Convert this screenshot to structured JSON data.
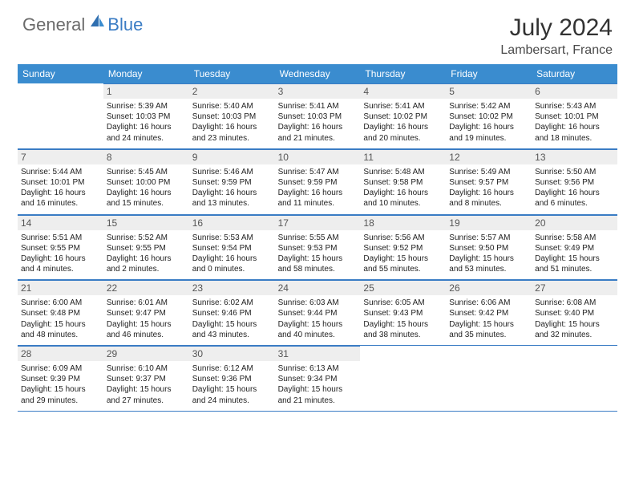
{
  "brand": {
    "part1": "General",
    "part2": "Blue"
  },
  "title": "July 2024",
  "location": "Lambersart, France",
  "colors": {
    "header_bg": "#3a8ccf",
    "border": "#3a7cc4",
    "daynum_bg": "#eeeeee",
    "text": "#222222",
    "logo_gray": "#6b6b6b",
    "logo_blue": "#3a7cc4"
  },
  "day_labels": [
    "Sunday",
    "Monday",
    "Tuesday",
    "Wednesday",
    "Thursday",
    "Friday",
    "Saturday"
  ],
  "weeks": [
    [
      {
        "empty": true
      },
      {
        "n": "1",
        "sunrise": "Sunrise: 5:39 AM",
        "sunset": "Sunset: 10:03 PM",
        "day1": "Daylight: 16 hours",
        "day2": "and 24 minutes."
      },
      {
        "n": "2",
        "sunrise": "Sunrise: 5:40 AM",
        "sunset": "Sunset: 10:03 PM",
        "day1": "Daylight: 16 hours",
        "day2": "and 23 minutes."
      },
      {
        "n": "3",
        "sunrise": "Sunrise: 5:41 AM",
        "sunset": "Sunset: 10:03 PM",
        "day1": "Daylight: 16 hours",
        "day2": "and 21 minutes."
      },
      {
        "n": "4",
        "sunrise": "Sunrise: 5:41 AM",
        "sunset": "Sunset: 10:02 PM",
        "day1": "Daylight: 16 hours",
        "day2": "and 20 minutes."
      },
      {
        "n": "5",
        "sunrise": "Sunrise: 5:42 AM",
        "sunset": "Sunset: 10:02 PM",
        "day1": "Daylight: 16 hours",
        "day2": "and 19 minutes."
      },
      {
        "n": "6",
        "sunrise": "Sunrise: 5:43 AM",
        "sunset": "Sunset: 10:01 PM",
        "day1": "Daylight: 16 hours",
        "day2": "and 18 minutes."
      }
    ],
    [
      {
        "n": "7",
        "sunrise": "Sunrise: 5:44 AM",
        "sunset": "Sunset: 10:01 PM",
        "day1": "Daylight: 16 hours",
        "day2": "and 16 minutes."
      },
      {
        "n": "8",
        "sunrise": "Sunrise: 5:45 AM",
        "sunset": "Sunset: 10:00 PM",
        "day1": "Daylight: 16 hours",
        "day2": "and 15 minutes."
      },
      {
        "n": "9",
        "sunrise": "Sunrise: 5:46 AM",
        "sunset": "Sunset: 9:59 PM",
        "day1": "Daylight: 16 hours",
        "day2": "and 13 minutes."
      },
      {
        "n": "10",
        "sunrise": "Sunrise: 5:47 AM",
        "sunset": "Sunset: 9:59 PM",
        "day1": "Daylight: 16 hours",
        "day2": "and 11 minutes."
      },
      {
        "n": "11",
        "sunrise": "Sunrise: 5:48 AM",
        "sunset": "Sunset: 9:58 PM",
        "day1": "Daylight: 16 hours",
        "day2": "and 10 minutes."
      },
      {
        "n": "12",
        "sunrise": "Sunrise: 5:49 AM",
        "sunset": "Sunset: 9:57 PM",
        "day1": "Daylight: 16 hours",
        "day2": "and 8 minutes."
      },
      {
        "n": "13",
        "sunrise": "Sunrise: 5:50 AM",
        "sunset": "Sunset: 9:56 PM",
        "day1": "Daylight: 16 hours",
        "day2": "and 6 minutes."
      }
    ],
    [
      {
        "n": "14",
        "sunrise": "Sunrise: 5:51 AM",
        "sunset": "Sunset: 9:55 PM",
        "day1": "Daylight: 16 hours",
        "day2": "and 4 minutes."
      },
      {
        "n": "15",
        "sunrise": "Sunrise: 5:52 AM",
        "sunset": "Sunset: 9:55 PM",
        "day1": "Daylight: 16 hours",
        "day2": "and 2 minutes."
      },
      {
        "n": "16",
        "sunrise": "Sunrise: 5:53 AM",
        "sunset": "Sunset: 9:54 PM",
        "day1": "Daylight: 16 hours",
        "day2": "and 0 minutes."
      },
      {
        "n": "17",
        "sunrise": "Sunrise: 5:55 AM",
        "sunset": "Sunset: 9:53 PM",
        "day1": "Daylight: 15 hours",
        "day2": "and 58 minutes."
      },
      {
        "n": "18",
        "sunrise": "Sunrise: 5:56 AM",
        "sunset": "Sunset: 9:52 PM",
        "day1": "Daylight: 15 hours",
        "day2": "and 55 minutes."
      },
      {
        "n": "19",
        "sunrise": "Sunrise: 5:57 AM",
        "sunset": "Sunset: 9:50 PM",
        "day1": "Daylight: 15 hours",
        "day2": "and 53 minutes."
      },
      {
        "n": "20",
        "sunrise": "Sunrise: 5:58 AM",
        "sunset": "Sunset: 9:49 PM",
        "day1": "Daylight: 15 hours",
        "day2": "and 51 minutes."
      }
    ],
    [
      {
        "n": "21",
        "sunrise": "Sunrise: 6:00 AM",
        "sunset": "Sunset: 9:48 PM",
        "day1": "Daylight: 15 hours",
        "day2": "and 48 minutes."
      },
      {
        "n": "22",
        "sunrise": "Sunrise: 6:01 AM",
        "sunset": "Sunset: 9:47 PM",
        "day1": "Daylight: 15 hours",
        "day2": "and 46 minutes."
      },
      {
        "n": "23",
        "sunrise": "Sunrise: 6:02 AM",
        "sunset": "Sunset: 9:46 PM",
        "day1": "Daylight: 15 hours",
        "day2": "and 43 minutes."
      },
      {
        "n": "24",
        "sunrise": "Sunrise: 6:03 AM",
        "sunset": "Sunset: 9:44 PM",
        "day1": "Daylight: 15 hours",
        "day2": "and 40 minutes."
      },
      {
        "n": "25",
        "sunrise": "Sunrise: 6:05 AM",
        "sunset": "Sunset: 9:43 PM",
        "day1": "Daylight: 15 hours",
        "day2": "and 38 minutes."
      },
      {
        "n": "26",
        "sunrise": "Sunrise: 6:06 AM",
        "sunset": "Sunset: 9:42 PM",
        "day1": "Daylight: 15 hours",
        "day2": "and 35 minutes."
      },
      {
        "n": "27",
        "sunrise": "Sunrise: 6:08 AM",
        "sunset": "Sunset: 9:40 PM",
        "day1": "Daylight: 15 hours",
        "day2": "and 32 minutes."
      }
    ],
    [
      {
        "n": "28",
        "sunrise": "Sunrise: 6:09 AM",
        "sunset": "Sunset: 9:39 PM",
        "day1": "Daylight: 15 hours",
        "day2": "and 29 minutes."
      },
      {
        "n": "29",
        "sunrise": "Sunrise: 6:10 AM",
        "sunset": "Sunset: 9:37 PM",
        "day1": "Daylight: 15 hours",
        "day2": "and 27 minutes."
      },
      {
        "n": "30",
        "sunrise": "Sunrise: 6:12 AM",
        "sunset": "Sunset: 9:36 PM",
        "day1": "Daylight: 15 hours",
        "day2": "and 24 minutes."
      },
      {
        "n": "31",
        "sunrise": "Sunrise: 6:13 AM",
        "sunset": "Sunset: 9:34 PM",
        "day1": "Daylight: 15 hours",
        "day2": "and 21 minutes."
      },
      {
        "empty": true
      },
      {
        "empty": true
      },
      {
        "empty": true
      }
    ]
  ]
}
